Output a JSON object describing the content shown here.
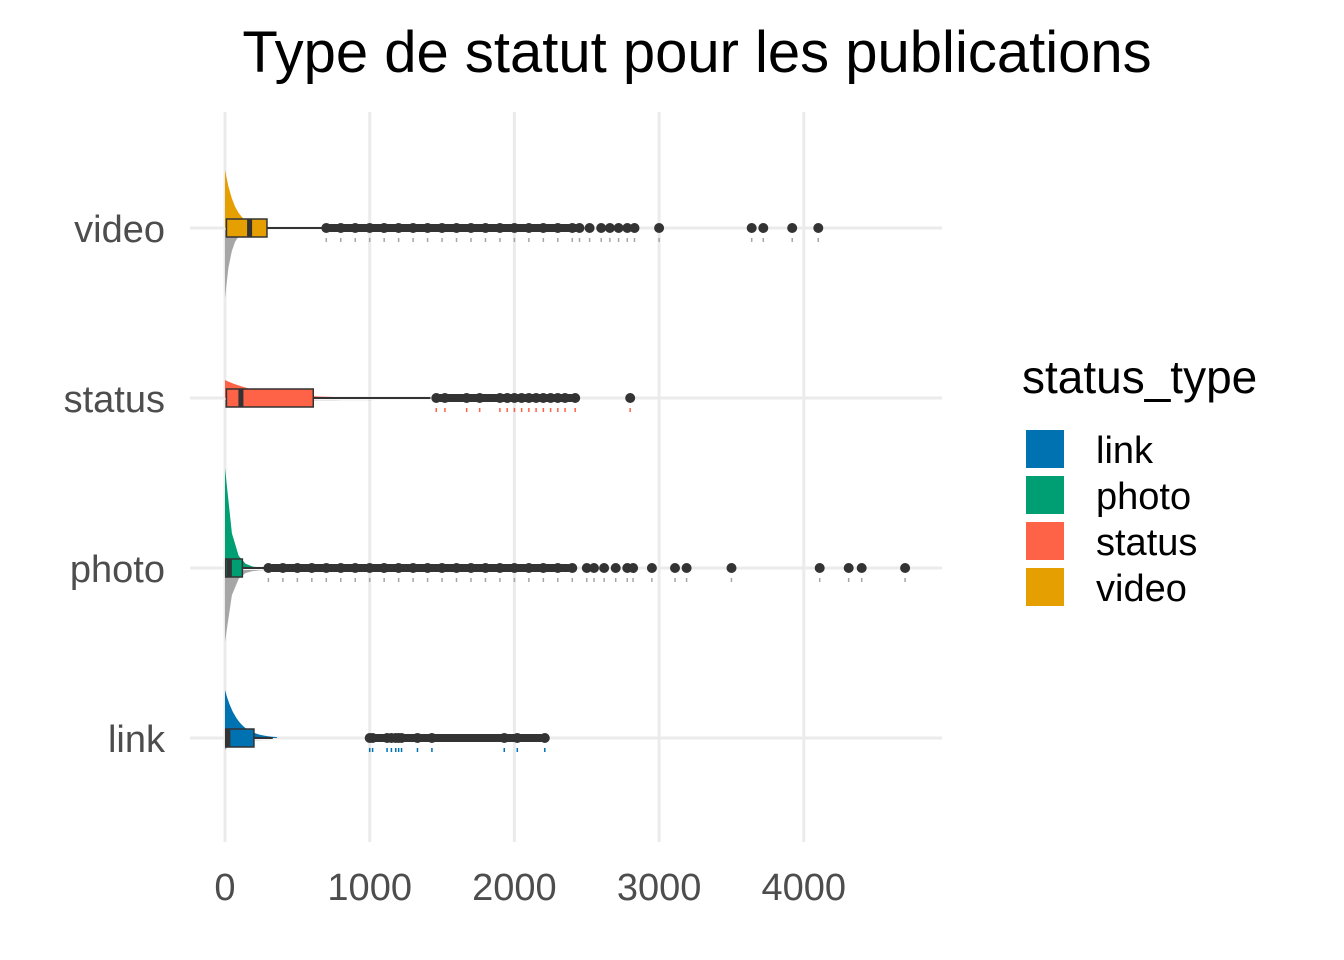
{
  "chart_data": {
    "type": "boxplot",
    "title": "Type de statut pour les publications",
    "xlabel": "",
    "ylabel": "",
    "xlim": [
      0,
      4900
    ],
    "xticks": [
      0,
      1000,
      2000,
      3000,
      4000
    ],
    "xtick_labels": [
      "0",
      "1000",
      "2000",
      "3000",
      "4000"
    ],
    "categories": [
      "link",
      "photo",
      "status",
      "video"
    ],
    "grid": true,
    "legend": {
      "title": "status_type",
      "position": "right",
      "entries": [
        "link",
        "photo",
        "status",
        "video"
      ]
    },
    "colors": {
      "link": "#0072B2",
      "photo": "#009E73",
      "status": "#FF6347",
      "video": "#E69F00",
      "outlier": "#333333",
      "density_mirror": "#A6A6A6",
      "grid": "#EBEBEB"
    },
    "series": [
      {
        "name": "link",
        "box": {
          "q1": 5,
          "median": 20,
          "q3": 200,
          "whisker_low": 0,
          "whisker_high": 330
        },
        "outliers": [
          1000,
          1020,
          1120,
          1150,
          1180,
          1200,
          1220,
          1330,
          1430,
          1930,
          2020,
          2210
        ]
      },
      {
        "name": "photo",
        "box": {
          "q1": 5,
          "median": 30,
          "q3": 120,
          "whisker_low": 0,
          "whisker_high": 270
        },
        "outliers": [
          300,
          400,
          500,
          600,
          700,
          800,
          900,
          1000,
          1100,
          1200,
          1300,
          1400,
          1500,
          1600,
          1700,
          1800,
          1900,
          2000,
          2100,
          2200,
          2300,
          2400,
          2500,
          2550,
          2620,
          2700,
          2780,
          2820,
          2950,
          3110,
          3190,
          3500,
          4110,
          4310,
          4400,
          4700
        ]
      },
      {
        "name": "status",
        "box": {
          "q1": 10,
          "median": 110,
          "q3": 610,
          "whisker_low": 0,
          "whisker_high": 1420
        },
        "outliers": [
          1460,
          1520,
          1670,
          1760,
          1900,
          1950,
          2000,
          2050,
          2100,
          2150,
          2200,
          2250,
          2300,
          2350,
          2420,
          2800
        ]
      },
      {
        "name": "video",
        "box": {
          "q1": 10,
          "median": 170,
          "q3": 290,
          "whisker_low": 0,
          "whisker_high": 680
        },
        "outliers": [
          700,
          800,
          900,
          1000,
          1100,
          1200,
          1300,
          1400,
          1500,
          1600,
          1700,
          1800,
          1900,
          2000,
          2100,
          2200,
          2300,
          2400,
          2450,
          2520,
          2600,
          2660,
          2720,
          2780,
          2830,
          3000,
          3640,
          3720,
          3920,
          4100
        ]
      }
    ]
  }
}
